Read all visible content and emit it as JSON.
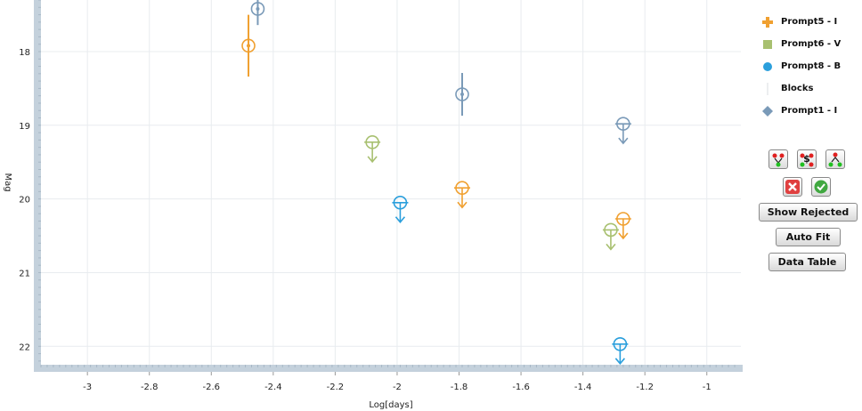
{
  "chart_data": {
    "type": "scatter",
    "xlabel": "Log[days]",
    "ylabel": "Mag",
    "xlim": [
      -3.15,
      -0.89
    ],
    "ylim": [
      17.3,
      22.25
    ],
    "y_inverted": true,
    "grid": true,
    "legend_position": "right",
    "x_ticks": [
      "-3",
      "-2.8",
      "-2.6",
      "-2.4",
      "-2.2",
      "-2",
      "-1.8",
      "-1.6",
      "-1.4",
      "-1.2",
      "-1"
    ],
    "y_ticks": [
      "18",
      "19",
      "20",
      "21",
      "22"
    ],
    "series": [
      {
        "name": "Prompt5 - I",
        "color": "#f0a030",
        "points": [
          {
            "x": -2.48,
            "y": 17.92,
            "err": 0.42,
            "limit": false
          },
          {
            "x": -1.79,
            "y": 19.85,
            "limit": true
          },
          {
            "x": -1.27,
            "y": 20.27,
            "limit": true
          }
        ]
      },
      {
        "name": "Prompt6 - V",
        "color": "#a8c070",
        "points": [
          {
            "x": -2.08,
            "y": 19.23,
            "limit": true
          },
          {
            "x": -1.31,
            "y": 20.42,
            "limit": true
          }
        ]
      },
      {
        "name": "Prompt8 - B",
        "color": "#2b9fdc",
        "points": [
          {
            "x": -1.99,
            "y": 20.05,
            "limit": true
          },
          {
            "x": -1.28,
            "y": 21.97,
            "limit": true
          }
        ]
      },
      {
        "name": "Blocks",
        "color": "#d8dde2",
        "points": []
      },
      {
        "name": "Prompt1 - I",
        "color": "#7a9ab8",
        "points": [
          {
            "x": -2.45,
            "y": 17.42,
            "err": 0.22,
            "limit": false
          },
          {
            "x": -1.79,
            "y": 18.58,
            "err": 0.29,
            "limit": false
          },
          {
            "x": -1.27,
            "y": 18.98,
            "limit": true
          }
        ]
      }
    ]
  },
  "buttons": {
    "show_rejected": "Show Rejected",
    "auto_fit": "Auto Fit",
    "data_table": "Data Table"
  }
}
